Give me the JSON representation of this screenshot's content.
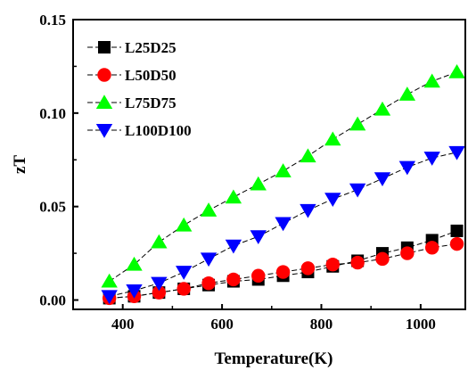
{
  "chart_data": {
    "type": "line",
    "xlabel": "Temperature(K)",
    "ylabel": "zT",
    "xlim": [
      300,
      1090
    ],
    "ylim": [
      -0.005,
      0.15
    ],
    "x_ticks": [
      "400",
      "600",
      "800",
      "1000"
    ],
    "y_ticks": [
      "0.00",
      "0.05",
      "0.10",
      "0.15"
    ],
    "legend_position": "top-left",
    "x": [
      373,
      423,
      473,
      523,
      573,
      623,
      673,
      723,
      773,
      823,
      873,
      923,
      973,
      1023,
      1073
    ],
    "series": [
      {
        "name": "L25D25",
        "marker": "square",
        "color": "#000000",
        "values": [
          0.001,
          0.002,
          0.004,
          0.006,
          0.008,
          0.01,
          0.011,
          0.013,
          0.015,
          0.018,
          0.021,
          0.025,
          0.028,
          0.032,
          0.037
        ]
      },
      {
        "name": "L50D50",
        "marker": "circle",
        "color": "#ff0000",
        "values": [
          0.001,
          0.002,
          0.004,
          0.006,
          0.009,
          0.011,
          0.013,
          0.015,
          0.017,
          0.019,
          0.02,
          0.022,
          0.025,
          0.028,
          0.03
        ]
      },
      {
        "name": "L75D75",
        "marker": "triangle-up",
        "color": "#00ff00",
        "values": [
          0.01,
          0.019,
          0.031,
          0.04,
          0.048,
          0.055,
          0.062,
          0.069,
          0.077,
          0.086,
          0.094,
          0.102,
          0.11,
          0.117,
          0.122
        ]
      },
      {
        "name": "L100D100",
        "marker": "triangle-down",
        "color": "#0000ff",
        "values": [
          0.002,
          0.005,
          0.009,
          0.015,
          0.022,
          0.029,
          0.034,
          0.041,
          0.048,
          0.054,
          0.059,
          0.065,
          0.071,
          0.076,
          0.079
        ]
      }
    ]
  }
}
